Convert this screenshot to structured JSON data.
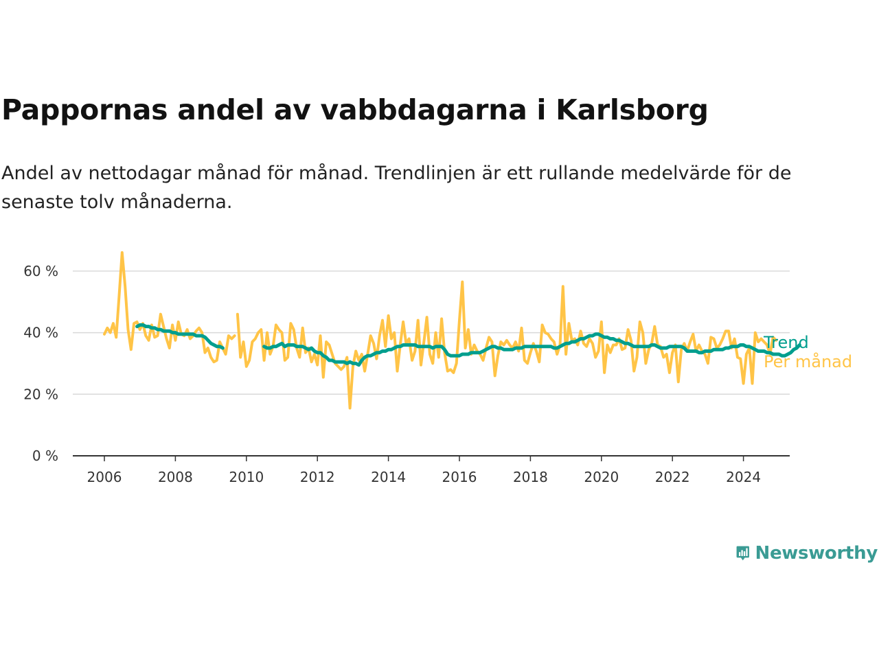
{
  "header": {
    "title": "Pappornas andel av vabbdagarna i Karlsborg",
    "subtitle": "Andel av nettodagar månad för månad. Trendlinjen är ett rullande medelvärde för de senaste tolv månaderna."
  },
  "brand": {
    "name": "Newsworthy",
    "icon": "newsworthy-logo-icon",
    "color": "#3a9b94"
  },
  "colors": {
    "trend": "#009e8e",
    "monthly": "#ffc447",
    "grid": "#d9d9d9",
    "axis": "#333333"
  },
  "chart_data": {
    "type": "line",
    "y_tick_labels": [
      "0 %",
      "20 %",
      "40 %",
      "60 %"
    ],
    "y_ticks": [
      0,
      20,
      40,
      60
    ],
    "ylim": [
      0,
      70
    ],
    "xlim": [
      2006,
      2025.2
    ],
    "x_tick_labels": [
      "2006",
      "2008",
      "2010",
      "2012",
      "2014",
      "2016",
      "2018",
      "2020",
      "2022",
      "2024"
    ],
    "x_ticks": [
      2006,
      2008,
      2010,
      2012,
      2014,
      2016,
      2018,
      2020,
      2022,
      2024
    ],
    "grid": "horizontal",
    "legend_placement": "right-end",
    "series": [
      {
        "name": "Per månad",
        "color": "#ffc447",
        "segments": [
          {
            "start": 2006.0,
            "step": 0.08333,
            "values": [
              39.5,
              41.5,
              40,
              43,
              38.5,
              52,
              66,
              55,
              41,
              34.5,
              43,
              43.5,
              41,
              43,
              39,
              37.5,
              42.5,
              38.5,
              39,
              46,
              42,
              38,
              35,
              42.5,
              37.5,
              43.5,
              39.5,
              39,
              41,
              38,
              39,
              40.5,
              41.5,
              40,
              33.5,
              35,
              32,
              30.5,
              31,
              37,
              35,
              33,
              39,
              38,
              39
            ]
          },
          {
            "start": 2009.75,
            "step": 0.08333,
            "values": [
              46,
              32,
              37,
              29,
              31,
              37,
              38,
              40,
              41,
              31,
              40,
              33,
              35.5,
              42.5,
              41,
              40,
              31,
              32,
              43,
              41,
              35,
              32,
              41.5,
              33.5,
              35,
              30.5,
              33,
              29.5,
              39,
              25.5,
              37,
              36,
              33,
              30,
              29,
              28,
              29,
              32,
              15.5,
              29,
              34,
              31,
              33,
              27.5,
              33,
              39,
              36.5,
              31.5,
              39,
              44,
              35.5,
              45.5,
              38,
              40,
              27.5,
              36,
              43.5,
              36.5,
              38,
              31,
              34,
              44,
              29.5,
              37,
              45,
              33,
              30,
              40,
              32,
              44.5,
              33.5,
              27.5,
              28,
              27,
              30,
              44,
              56.5,
              35,
              41,
              33,
              36,
              34,
              33,
              31,
              35,
              38.5,
              37,
              26,
              32.5,
              37,
              36,
              37.5,
              36,
              35,
              37,
              34,
              41.5,
              31,
              30,
              33.5,
              36.5,
              34,
              30.5,
              42.5,
              40,
              39.5,
              38,
              37,
              33,
              36,
              55,
              33,
              43,
              37.5,
              38,
              36,
              40.5,
              36.5,
              35.5,
              38,
              36.5,
              32,
              34,
              43.5,
              27,
              36,
              33.5,
              36,
              36,
              38,
              34.5,
              35,
              41,
              37.5,
              27.5,
              32,
              43.5,
              40,
              30,
              34.5,
              36.5,
              42,
              36,
              35.5,
              32,
              33,
              27,
              33.5,
              36,
              24,
              34.5,
              36.5,
              34,
              37,
              39.5,
              34,
              36,
              34,
              33,
              30,
              38.5,
              38,
              35,
              36,
              38,
              40.5,
              40.5,
              35,
              38,
              32,
              31.5,
              23.5,
              33,
              35,
              23.5,
              40,
              37,
              38,
              37,
              36,
              33,
              38.5,
              37.5
            ]
          }
        ]
      },
      {
        "name": "Trend",
        "color": "#009e8e",
        "segments": [
          {
            "start": 2006.92,
            "step": 0.08333,
            "values": [
              42,
              42.5,
              42.5,
              42,
              42,
              41.5,
              41.5,
              41,
              41,
              40.5,
              40.5,
              40.5,
              40,
              40,
              39.5,
              39.5,
              39.5,
              39.5,
              39.5,
              39.5,
              39,
              39,
              39,
              38.5,
              37.5,
              36.5,
              36,
              35.5,
              35.5,
              35
            ]
          },
          {
            "start": 2010.5,
            "step": 0.08333,
            "values": [
              35.5,
              35,
              35,
              35.5,
              35.5,
              36,
              36.5,
              35.5,
              36,
              36,
              36,
              35.5,
              35.5,
              35.5,
              35,
              34.5,
              35,
              34,
              33.5,
              33.5,
              32.5,
              32,
              31,
              31,
              30.5,
              30.5,
              30.5,
              30.5,
              30,
              30.5,
              30,
              30,
              29.5,
              31,
              32,
              32.5,
              32.5,
              33,
              33.5,
              33.5,
              34,
              34,
              34.5,
              34.5,
              35,
              35.5,
              35.5,
              36,
              36,
              36,
              36,
              36,
              35.5,
              35.5,
              35.5,
              35.5,
              35.5,
              35,
              35.5,
              35.5,
              35.5,
              34.5,
              33,
              32.5,
              32.5,
              32.5,
              32.5,
              33,
              33,
              33,
              33.5,
              33.5,
              33.5,
              33.5,
              34,
              34.5,
              35,
              35.5,
              35.5,
              35,
              35,
              34.5,
              34.5,
              34.5,
              34.5,
              35,
              35,
              35,
              35.5,
              35.5,
              35.5,
              35.5,
              35.5,
              35.5,
              35.5,
              35.5,
              35.5,
              35.5,
              35,
              35,
              35.5,
              36,
              36.5,
              36.5,
              37,
              37,
              37.5,
              38,
              38,
              38.5,
              39,
              39,
              39.5,
              39.5,
              39,
              38.5,
              38.5,
              38,
              38,
              37.5,
              37.5,
              37,
              36.5,
              36.5,
              36,
              35.5,
              35.5,
              35.5,
              35.5,
              35.5,
              35.5,
              36,
              36,
              35.5,
              35,
              35,
              35,
              35.5,
              35.5,
              35.5,
              35.5,
              35.5,
              35,
              34,
              34,
              34,
              34,
              33.5,
              33.5,
              34,
              34,
              34,
              34.5,
              34.5,
              34.5,
              34.5,
              35,
              35,
              35.5,
              35.5,
              35.5,
              36,
              36,
              35.5,
              35.5,
              35,
              34.5,
              34,
              34,
              34,
              33.5,
              33.5,
              33,
              33,
              33,
              32.5,
              32.5,
              33,
              33.5,
              34.5,
              35,
              36
            ]
          }
        ]
      }
    ]
  }
}
